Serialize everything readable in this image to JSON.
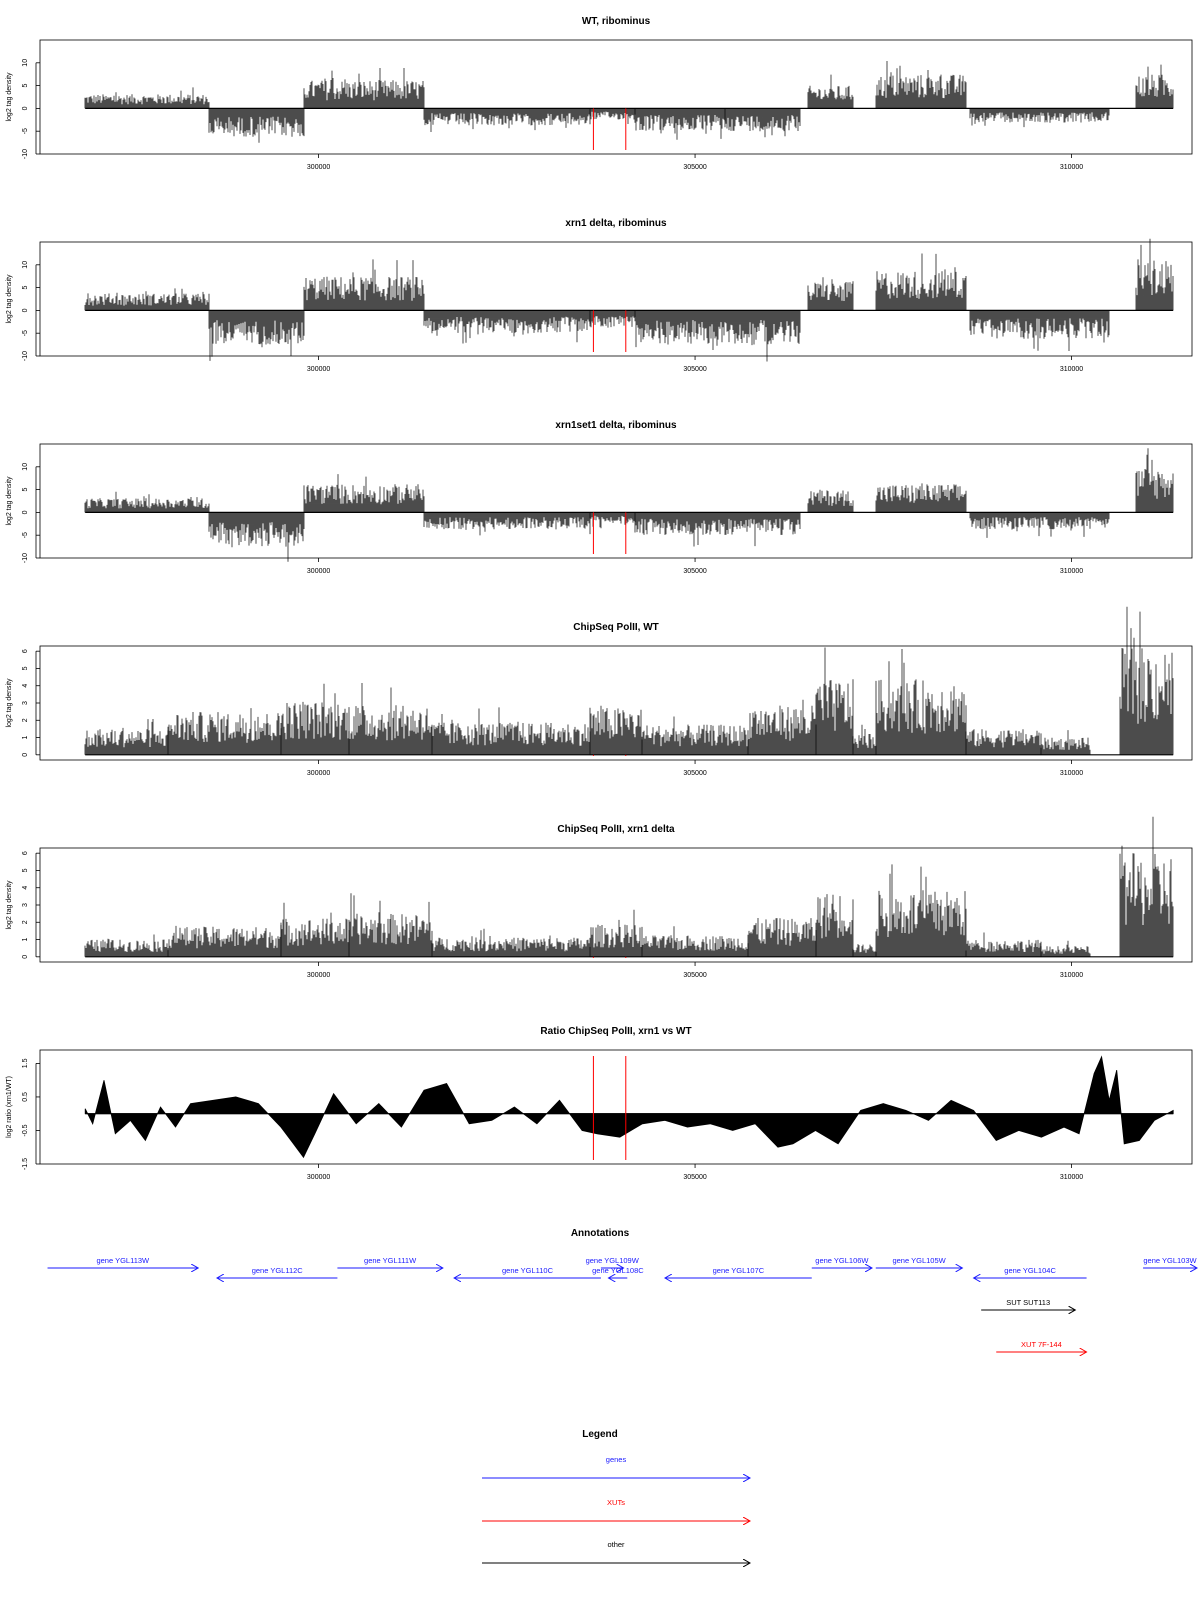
{
  "colors": {
    "gene": "#1a1aff",
    "xut": "#ff0000",
    "other": "#000000",
    "marker": "#ff0000",
    "signal": "#000000"
  },
  "chart_data": [
    {
      "type": "area",
      "title": "WT, ribominus",
      "ylabel": "log2 tag density",
      "xlim": [
        296300,
        311600
      ],
      "ylim": [
        -10,
        15
      ],
      "yticks": [
        -10,
        -5,
        0,
        5,
        10
      ],
      "xticks": [
        300000,
        305000,
        310000
      ],
      "xtick_labels": [
        "300000",
        "305000",
        "310000"
      ],
      "markers": [
        303650,
        304080
      ],
      "segments": [
        {
          "start": 296900,
          "end": 298550,
          "level": 2.5
        },
        {
          "start": 298550,
          "end": 299800,
          "level": -5
        },
        {
          "start": 299800,
          "end": 301400,
          "level": 5
        },
        {
          "start": 301400,
          "end": 303600,
          "level": -3
        },
        {
          "start": 303600,
          "end": 304200,
          "level": -2
        },
        {
          "start": 304200,
          "end": 305400,
          "level": -4
        },
        {
          "start": 305400,
          "end": 306400,
          "level": -4
        },
        {
          "start": 306500,
          "end": 307100,
          "level": 4
        },
        {
          "start": 307400,
          "end": 308600,
          "level": 6
        },
        {
          "start": 308650,
          "end": 310500,
          "level": -2.5
        },
        {
          "start": 310850,
          "end": 311350,
          "level": 6
        }
      ]
    },
    {
      "type": "area",
      "title": "xrn1 delta, ribominus",
      "ylabel": "log2 tag density",
      "xlim": [
        296300,
        311600
      ],
      "ylim": [
        -10,
        15
      ],
      "yticks": [
        -10,
        -5,
        0,
        5,
        10
      ],
      "xticks": [
        300000,
        305000,
        310000
      ],
      "xtick_labels": [
        "300000",
        "305000",
        "310000"
      ],
      "markers": [
        303650,
        304080
      ],
      "segments": [
        {
          "start": 296900,
          "end": 298550,
          "level": 3
        },
        {
          "start": 298550,
          "end": 299800,
          "level": -6
        },
        {
          "start": 299800,
          "end": 301400,
          "level": 6
        },
        {
          "start": 301400,
          "end": 303600,
          "level": -4
        },
        {
          "start": 303600,
          "end": 304200,
          "level": -3
        },
        {
          "start": 304200,
          "end": 306400,
          "level": -6
        },
        {
          "start": 306500,
          "end": 307100,
          "level": 5
        },
        {
          "start": 307400,
          "end": 308600,
          "level": 7
        },
        {
          "start": 308650,
          "end": 310500,
          "level": -5
        },
        {
          "start": 310850,
          "end": 311350,
          "level": 9
        }
      ]
    },
    {
      "type": "area",
      "title": "xrn1set1 delta, ribominus",
      "ylabel": "log2 tag density",
      "xlim": [
        296300,
        311600
      ],
      "ylim": [
        -10,
        15
      ],
      "yticks": [
        -10,
        -5,
        0,
        5,
        10
      ],
      "xticks": [
        300000,
        305000,
        310000
      ],
      "xtick_labels": [
        "300000",
        "305000",
        "310000"
      ],
      "markers": [
        303650,
        304080
      ],
      "segments": [
        {
          "start": 296900,
          "end": 298550,
          "level": 2.5
        },
        {
          "start": 298550,
          "end": 299800,
          "level": -6
        },
        {
          "start": 299800,
          "end": 301400,
          "level": 5
        },
        {
          "start": 301400,
          "end": 303600,
          "level": -3
        },
        {
          "start": 303600,
          "end": 304200,
          "level": -2
        },
        {
          "start": 304200,
          "end": 306400,
          "level": -4
        },
        {
          "start": 306500,
          "end": 307100,
          "level": 4
        },
        {
          "start": 307400,
          "end": 308600,
          "level": 5
        },
        {
          "start": 308650,
          "end": 310500,
          "level": -3
        },
        {
          "start": 310850,
          "end": 311350,
          "level": 8
        }
      ]
    },
    {
      "type": "area",
      "title": "ChipSeq PolII, WT",
      "ylabel": "log2 tag density",
      "xlim": [
        296300,
        311600
      ],
      "ylim": [
        -0.3,
        6.3
      ],
      "yticks": [
        0,
        1,
        2,
        3,
        4,
        5,
        6
      ],
      "xticks": [
        300000,
        305000,
        310000
      ],
      "xtick_labels": [
        "300000",
        "305000",
        "310000"
      ],
      "markers": [
        303650,
        304080
      ],
      "segments": [
        {
          "start": 296900,
          "end": 298000,
          "level": 1.2
        },
        {
          "start": 298000,
          "end": 299500,
          "level": 2
        },
        {
          "start": 299500,
          "end": 300400,
          "level": 2.5
        },
        {
          "start": 300400,
          "end": 301500,
          "level": 2.3
        },
        {
          "start": 301500,
          "end": 303600,
          "level": 1.5
        },
        {
          "start": 303600,
          "end": 304300,
          "level": 2.2
        },
        {
          "start": 304300,
          "end": 305700,
          "level": 1.4
        },
        {
          "start": 305700,
          "end": 306600,
          "level": 2.3
        },
        {
          "start": 306600,
          "end": 307100,
          "level": 3.5
        },
        {
          "start": 307100,
          "end": 307400,
          "level": 1
        },
        {
          "start": 307400,
          "end": 308600,
          "level": 3.5
        },
        {
          "start": 308600,
          "end": 309600,
          "level": 1.2
        },
        {
          "start": 309600,
          "end": 310250,
          "level": 0.8
        },
        {
          "start": 310650,
          "end": 311350,
          "level": 5
        }
      ]
    },
    {
      "type": "area",
      "title": "ChipSeq PolII, xrn1 delta",
      "ylabel": "log2 tag density",
      "xlim": [
        296300,
        311600
      ],
      "ylim": [
        -0.3,
        6.3
      ],
      "yticks": [
        0,
        1,
        2,
        3,
        4,
        5,
        6
      ],
      "xticks": [
        300000,
        305000,
        310000
      ],
      "xtick_labels": [
        "300000",
        "305000",
        "310000"
      ],
      "markers": [
        303650,
        304080
      ],
      "segments": [
        {
          "start": 296900,
          "end": 298000,
          "level": 0.8
        },
        {
          "start": 298000,
          "end": 299500,
          "level": 1.4
        },
        {
          "start": 299500,
          "end": 300400,
          "level": 1.8
        },
        {
          "start": 300400,
          "end": 301500,
          "level": 2
        },
        {
          "start": 301500,
          "end": 303600,
          "level": 0.9
        },
        {
          "start": 303600,
          "end": 304300,
          "level": 1.5
        },
        {
          "start": 304300,
          "end": 305700,
          "level": 1
        },
        {
          "start": 305700,
          "end": 306600,
          "level": 1.8
        },
        {
          "start": 306600,
          "end": 307100,
          "level": 3
        },
        {
          "start": 307100,
          "end": 307400,
          "level": 0.6
        },
        {
          "start": 307400,
          "end": 308600,
          "level": 3.1
        },
        {
          "start": 308600,
          "end": 309600,
          "level": 0.8
        },
        {
          "start": 309600,
          "end": 310250,
          "level": 0.5
        },
        {
          "start": 310650,
          "end": 311350,
          "level": 4.8
        }
      ]
    },
    {
      "type": "area",
      "title": "Ratio ChipSeq PolII, xrn1 vs WT",
      "ylabel": "log2 ratio (xrn1/WT)",
      "xlim": [
        296300,
        311600
      ],
      "ylim": [
        -1.5,
        1.9
      ],
      "yticks": [
        -1.5,
        -0.5,
        0.5,
        1.5
      ],
      "xticks": [
        300000,
        305000,
        310000
      ],
      "xtick_labels": [
        "300000",
        "305000",
        "310000"
      ],
      "markers": [
        303650,
        304080
      ],
      "profile": {
        "x": [
          296900,
          297000,
          297150,
          297300,
          297500,
          297700,
          297900,
          298100,
          298300,
          298600,
          298900,
          299200,
          299500,
          299700,
          299800,
          299950,
          300200,
          300500,
          300800,
          301100,
          301400,
          301700,
          302000,
          302300,
          302600,
          302900,
          303200,
          303500,
          303700,
          304000,
          304300,
          304600,
          304900,
          305200,
          305500,
          305800,
          306100,
          306300,
          306600,
          306900,
          307200,
          307500,
          307800,
          308100,
          308400,
          308700,
          309000,
          309300,
          309600,
          309900,
          310100,
          310300,
          310400,
          310500,
          310600,
          310700,
          310900,
          311100,
          311350
        ],
        "y": [
          0.15,
          -0.3,
          1.0,
          -0.6,
          -0.2,
          -0.8,
          0.2,
          -0.4,
          0.3,
          0.4,
          0.5,
          0.3,
          -0.4,
          -1.0,
          -1.3,
          -0.6,
          0.6,
          -0.3,
          0.3,
          -0.4,
          0.7,
          0.9,
          -0.3,
          -0.2,
          0.2,
          -0.3,
          0.4,
          -0.5,
          -0.6,
          -0.7,
          -0.3,
          -0.2,
          -0.4,
          -0.3,
          -0.5,
          -0.3,
          -1.0,
          -0.9,
          -0.5,
          -0.9,
          0.1,
          0.3,
          0.1,
          -0.2,
          0.4,
          0.1,
          -0.8,
          -0.5,
          -0.7,
          -0.4,
          -0.6,
          1.2,
          1.7,
          0.4,
          1.3,
          -0.9,
          -0.8,
          -0.2,
          0.1
        ]
      }
    }
  ],
  "annotations": {
    "title": "Annotations",
    "features": [
      {
        "label": "gene YGL113W",
        "start": 296400,
        "end": 298400,
        "strand": "+",
        "type": "gene",
        "row": 0
      },
      {
        "label": "gene YGL112C",
        "start": 298650,
        "end": 300250,
        "strand": "-",
        "type": "gene",
        "row": 1
      },
      {
        "label": "gene YGL111W",
        "start": 300250,
        "end": 301650,
        "strand": "+",
        "type": "gene",
        "row": 0
      },
      {
        "label": "gene YGL110C",
        "start": 301800,
        "end": 303750,
        "strand": "-",
        "type": "gene",
        "row": 1
      },
      {
        "label": "gene YGL109W",
        "start": 303750,
        "end": 304050,
        "strand": "+",
        "type": "gene",
        "row": 0
      },
      {
        "label": "gene YGL108C",
        "start": 303850,
        "end": 304100,
        "strand": "-",
        "type": "gene",
        "row": 1
      },
      {
        "label": "gene YGL107C",
        "start": 304600,
        "end": 306550,
        "strand": "-",
        "type": "gene",
        "row": 1
      },
      {
        "label": "gene YGL106W",
        "start": 306550,
        "end": 307350,
        "strand": "+",
        "type": "gene",
        "row": 0
      },
      {
        "label": "gene YGL105W",
        "start": 307400,
        "end": 308550,
        "strand": "+",
        "type": "gene",
        "row": 0
      },
      {
        "label": "gene YGL104C",
        "start": 308700,
        "end": 310200,
        "strand": "-",
        "type": "gene",
        "row": 1
      },
      {
        "label": "gene YGL103W",
        "start": 310950,
        "end": 311900,
        "strand": "+",
        "type": "gene",
        "row": 0
      },
      {
        "label": "SUT SUT113",
        "start": 308800,
        "end": 310050,
        "strand": "+",
        "type": "other",
        "row": 2
      },
      {
        "label": "XUT 7F-144",
        "start": 309000,
        "end": 310200,
        "strand": "+",
        "type": "xut",
        "row": 3
      }
    ]
  },
  "legend": {
    "title": "Legend",
    "items": [
      {
        "label": "genes",
        "type": "gene"
      },
      {
        "label": "XUTs",
        "type": "xut"
      },
      {
        "label": "other",
        "type": "other"
      }
    ]
  }
}
